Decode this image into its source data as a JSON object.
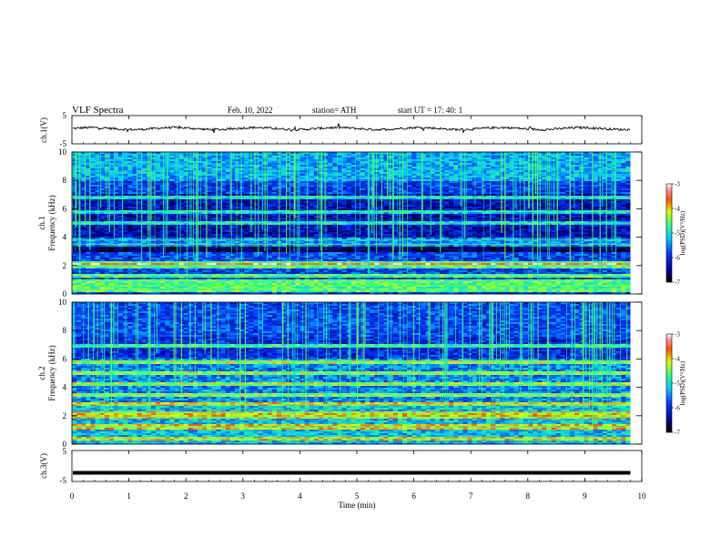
{
  "header": {
    "title": "VLF  Spectra",
    "date": "Feb. 10, 2022",
    "station": "station= ATH",
    "start_ut": "start  UT  =    17: 40: 1"
  },
  "chart_data": [
    {
      "type": "line",
      "panel": "ch1_waveform",
      "ylabel": "ch.1(V)",
      "ylim": [
        -5,
        5
      ],
      "yticks": [
        "5",
        "-5"
      ],
      "baseline_level": 0.4,
      "amplitude": 0.35,
      "color": "#000000"
    },
    {
      "type": "heatmap",
      "panel": "ch1_spectrogram",
      "ylabel_line1": "ch.1",
      "ylabel_line2": "Frequency  (kHz)",
      "ylim": [
        0,
        10
      ],
      "yticks": [
        "0",
        "2",
        "4",
        "6",
        "8",
        "10"
      ],
      "colorbar": {
        "label": "log(PSD)(V²/Hz)",
        "ticks": [
          "-3",
          "-4",
          "-5",
          "-6",
          "-7"
        ],
        "range": [
          -7,
          -3
        ]
      },
      "description_bands_khz": [
        0.3,
        0.6,
        0.9,
        1.3,
        2.0,
        2.2,
        3.5,
        3.8,
        5.0,
        5.8,
        6.8
      ]
    },
    {
      "type": "heatmap",
      "panel": "ch2_spectrogram",
      "ylabel_line1": "ch.2",
      "ylabel_line2": "Frequency  (kHz)",
      "ylim": [
        0,
        10
      ],
      "yticks": [
        "0",
        "2",
        "4",
        "6",
        "8",
        "10"
      ],
      "colorbar": {
        "label": "log(PSD)(V²/Hz)",
        "ticks": [
          "-3",
          "-4",
          "-5",
          "-6",
          "-7"
        ],
        "range": [
          -7,
          -3
        ]
      },
      "description_bands_khz": [
        0.4,
        1.2,
        1.9,
        2.2,
        2.8,
        3.5,
        4.2,
        5.0,
        5.8,
        6.9
      ]
    },
    {
      "type": "line",
      "panel": "ch3_waveform",
      "ylabel": "ch.3(V)",
      "ylim": [
        -5,
        5
      ],
      "yticks": [
        "5",
        "-5"
      ],
      "baseline_level": -2.2,
      "color": "#000000"
    }
  ],
  "xaxis": {
    "label": "Time  (min)",
    "xlim": [
      0,
      10
    ],
    "ticks": [
      "0",
      "1",
      "2",
      "3",
      "4",
      "5",
      "6",
      "7",
      "8",
      "9",
      "10"
    ],
    "data_end": 9.8
  }
}
